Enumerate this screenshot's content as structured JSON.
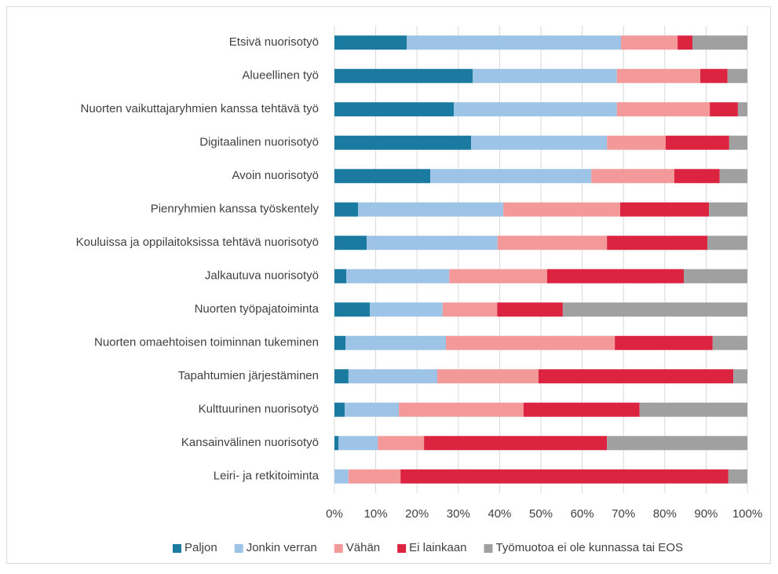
{
  "chart_data": {
    "type": "stacked-barh",
    "categories": [
      "Etsivä nuorisotyö",
      "Alueellinen työ",
      "Nuorten vaikuttajaryhmien kanssa tehtävä työ",
      "Digitaalinen nuorisotyö",
      "Avoin nuorisotyö",
      "Pienryhmien kanssa työskentely",
      "Kouluissa ja oppilaitoksissa tehtävä nuorisotyö",
      "Jalkautuva nuorisotyö",
      "Nuorten työpajatoiminta",
      "Nuorten omaehtoisen toiminnan tukeminen",
      "Tapahtumien järjestäminen",
      "Kulttuurinen nuorisotyö",
      "Kansainvälinen nuorisotyö",
      "Leiri- ja retkitoiminta"
    ],
    "series": [
      {
        "name": "Paljon",
        "color": "#1b7aa0",
        "values": [
          17.5,
          33.5,
          28.9,
          33.1,
          23.2,
          5.7,
          7.8,
          2.9,
          8.6,
          2.7,
          3.4,
          2.5,
          1.0,
          0
        ]
      },
      {
        "name": "Jonkin verran",
        "color": "#9dc3e6",
        "values": [
          51.9,
          34.9,
          39.5,
          32.9,
          39.0,
          35.2,
          31.7,
          24.9,
          17.6,
          24.3,
          21.5,
          13.1,
          9.5,
          3.4
        ]
      },
      {
        "name": "Vähän",
        "color": "#f4999a",
        "values": [
          13.7,
          20.2,
          22.5,
          14.2,
          20.1,
          28.3,
          26.5,
          23.7,
          13.2,
          40.9,
          24.5,
          30.2,
          11.2,
          12.6
        ]
      },
      {
        "name": "Ei lainkaan",
        "color": "#dc2440",
        "values": [
          3.6,
          6.6,
          6.8,
          15.4,
          11.0,
          21.5,
          24.3,
          33.1,
          15.9,
          23.7,
          47.2,
          28.1,
          44.3,
          79.4
        ]
      },
      {
        "name": "Työmuotoa ei ole kunnassa tai EOS",
        "color": "#a0a0a0",
        "values": [
          13.3,
          4.8,
          2.3,
          4.4,
          6.7,
          9.3,
          9.7,
          15.4,
          44.7,
          8.4,
          3.4,
          26.1,
          34.0,
          4.6
        ]
      }
    ],
    "xlim": [
      0,
      100
    ],
    "xticks": [
      {
        "value": 0,
        "label": "0%"
      },
      {
        "value": 10,
        "label": "10%"
      },
      {
        "value": 20,
        "label": "20%"
      },
      {
        "value": 30,
        "label": "30%"
      },
      {
        "value": 40,
        "label": "40%"
      },
      {
        "value": 50,
        "label": "50%"
      },
      {
        "value": 60,
        "label": "60%"
      },
      {
        "value": 70,
        "label": "70%"
      },
      {
        "value": 80,
        "label": "80%"
      },
      {
        "value": 90,
        "label": "90%"
      },
      {
        "value": 100,
        "label": "100%"
      }
    ],
    "grid": true,
    "legend": "bottom"
  }
}
